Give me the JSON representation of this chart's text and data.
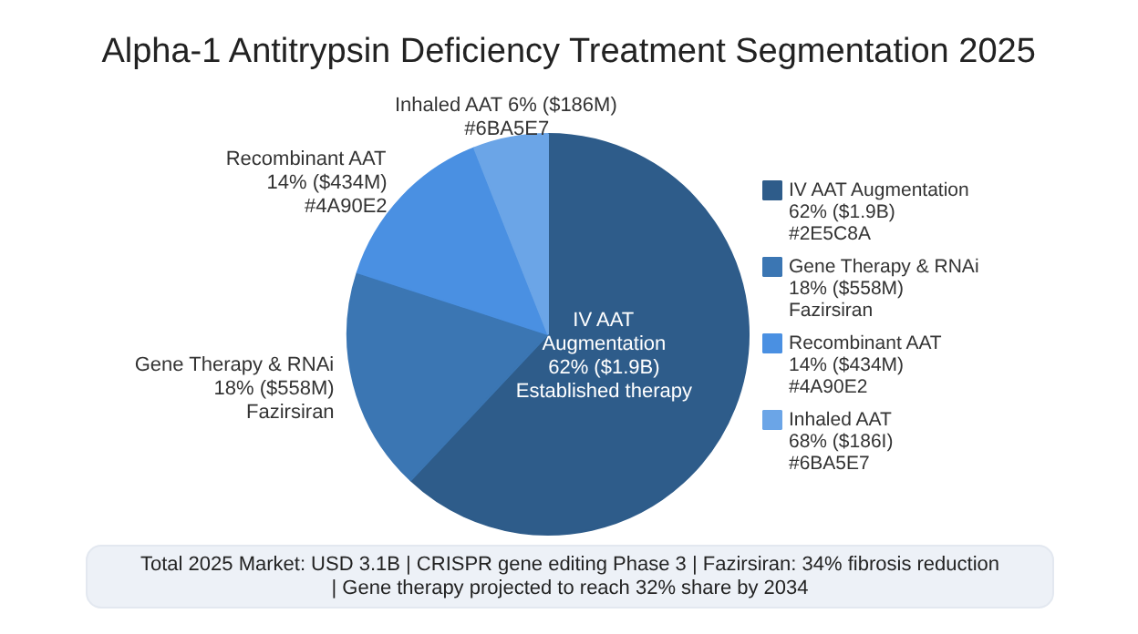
{
  "chart_data": {
    "type": "pie",
    "title": "Alpha-1 Antitrypsin Deficiency Treatment Segmentation 2025",
    "categories": [
      "IV AAT Augmentation",
      "Gene Therapy & RNAi",
      "Recombinant AAT",
      "Inhaled AAT"
    ],
    "values": [
      62,
      18,
      14,
      6
    ],
    "colors": [
      "#2e5c8a",
      "#3b76b3",
      "#4a90e2",
      "#6ba5e7"
    ],
    "value_labels": [
      "62% ($1.9B)\nEstablished therapy",
      "18% ($558M)\nFazirsiran",
      "14% ($434M)\n#4A90E2",
      "6% ($186M)\n#6BA5E7"
    ],
    "legend": "right",
    "annotations": [
      {
        "text": "62% ($1.9B)\n#2E5C8A",
        "x": "IV AAT Augmentation"
      },
      {
        "text": "18% ($558M)\nFazirsiran",
        "x": "Gene Therapy & RNAi"
      },
      {
        "text": "14% ($434M)\n#4A90E2",
        "x": "Recombinant AAT"
      },
      {
        "text": "68% ($186I)\n#6BA5E7",
        "x": "Inhaled AAT"
      },
      "Total 2025 Market: USD 3.1B | CRISPR gene editing Phase 3 | Fazirsiran: 34% fibrosis reduction | Gene therapy projected to reach 32% share by 2034"
    ]
  }
}
